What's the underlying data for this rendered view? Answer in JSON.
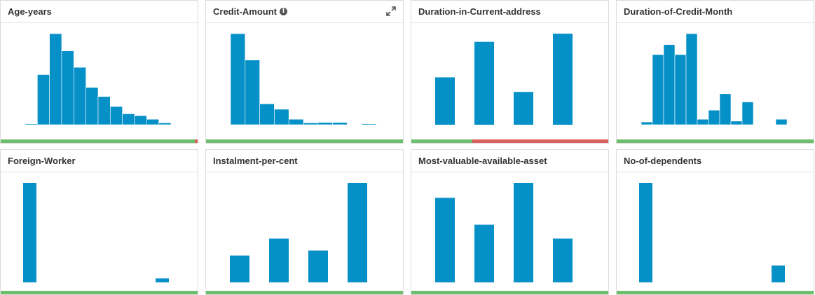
{
  "colors": {
    "bar": "#0590c8",
    "ok": "#6dbf6d",
    "bad": "#d9605a"
  },
  "cards": [
    {
      "title": "Age-years",
      "suffix": "ˈ",
      "info": false,
      "expand": false,
      "bars": [
        0.01,
        0.55,
        1.0,
        0.81,
        0.63,
        0.41,
        0.31,
        0.2,
        0.12,
        0.1,
        0.06,
        0.02
      ],
      "style": "hist",
      "status": [
        0.985,
        0.015
      ]
    },
    {
      "title": "Credit-Amount",
      "suffix": "",
      "info": true,
      "expand": true,
      "bars": [
        1.0,
        0.71,
        0.23,
        0.17,
        0.06,
        0.02,
        0.025,
        0.025,
        0.0,
        0.01
      ],
      "style": "hist",
      "status": [
        1.0,
        0.0
      ]
    },
    {
      "title": "Duration-in-Current-address",
      "suffix": "",
      "info": false,
      "expand": false,
      "bars": [
        0.52,
        0.91,
        0.36,
        1.0
      ],
      "style": "spaced",
      "status": [
        0.31,
        0.69
      ]
    },
    {
      "title": "Duration-of-Credit-Month",
      "suffix": "",
      "info": false,
      "expand": false,
      "bars": [
        0.03,
        0.77,
        0.88,
        0.77,
        1.0,
        0.06,
        0.16,
        0.34,
        0.04,
        0.25,
        0.0,
        0.0,
        0.06
      ],
      "style": "hist",
      "status": [
        1.0,
        0.0
      ]
    },
    {
      "title": "Foreign-Worker",
      "suffix": "",
      "info": false,
      "expand": false,
      "bars": [
        1.0,
        0.04
      ],
      "style": "two",
      "status": [
        1.0,
        0.0
      ]
    },
    {
      "title": "Instalment-per-cent",
      "suffix": "",
      "info": false,
      "expand": false,
      "bars": [
        0.27,
        0.44,
        0.32,
        1.0
      ],
      "style": "spaced",
      "status": [
        1.0,
        0.0
      ]
    },
    {
      "title": "Most-valuable-available-asset",
      "suffix": "",
      "info": false,
      "expand": false,
      "bars": [
        0.85,
        0.58,
        1.0,
        0.44
      ],
      "style": "spaced",
      "status": [
        1.0,
        0.0
      ]
    },
    {
      "title": "No-of-dependents",
      "suffix": "",
      "info": false,
      "expand": false,
      "bars": [
        1.0,
        0.17
      ],
      "style": "two",
      "status": [
        1.0,
        0.0
      ]
    }
  ]
}
